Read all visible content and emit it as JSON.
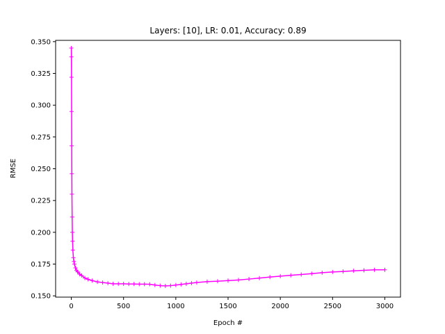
{
  "chart_data": {
    "type": "line",
    "title": "Layers: [10], LR: 0.01, Accuracy: 0.89",
    "xlabel": "Epoch #",
    "ylabel": "RMSE",
    "xlim": [
      -150,
      3150
    ],
    "ylim": [
      0.149,
      0.351
    ],
    "xticks": [
      0,
      500,
      1000,
      1500,
      2000,
      2500,
      3000
    ],
    "yticks": [
      0.15,
      0.175,
      0.2,
      0.225,
      0.25,
      0.275,
      0.3,
      0.325,
      0.35
    ],
    "xtick_labels": [
      "0",
      "500",
      "1000",
      "1500",
      "2000",
      "2500",
      "3000"
    ],
    "ytick_labels": [
      "0.150",
      "0.175",
      "0.200",
      "0.225",
      "0.250",
      "0.275",
      "0.300",
      "0.325",
      "0.350"
    ],
    "grid": false,
    "series": [
      {
        "color": "#ff00ff",
        "marker": "+",
        "x": [
          0,
          1,
          2,
          3,
          4,
          5,
          6,
          8,
          10,
          12,
          15,
          20,
          25,
          30,
          40,
          50,
          60,
          80,
          100,
          130,
          160,
          200,
          250,
          300,
          350,
          400,
          450,
          500,
          550,
          600,
          650,
          700,
          750,
          800,
          850,
          900,
          950,
          1000,
          1050,
          1100,
          1150,
          1200,
          1300,
          1400,
          1500,
          1600,
          1700,
          1800,
          1900,
          2000,
          2100,
          2200,
          2300,
          2400,
          2500,
          2600,
          2700,
          2800,
          2900,
          3000
        ],
        "y": [
          0.345,
          0.338,
          0.322,
          0.295,
          0.268,
          0.246,
          0.23,
          0.212,
          0.2,
          0.193,
          0.186,
          0.18,
          0.177,
          0.175,
          0.172,
          0.17,
          0.169,
          0.167,
          0.166,
          0.164,
          0.163,
          0.162,
          0.161,
          0.1605,
          0.16,
          0.1595,
          0.1595,
          0.1595,
          0.1593,
          0.1593,
          0.1592,
          0.1592,
          0.1591,
          0.1585,
          0.158,
          0.1578,
          0.158,
          0.1585,
          0.159,
          0.1595,
          0.16,
          0.1605,
          0.1612,
          0.1615,
          0.162,
          0.1625,
          0.1632,
          0.164,
          0.1648,
          0.1655,
          0.1662,
          0.1668,
          0.1675,
          0.1682,
          0.1688,
          0.1692,
          0.1697,
          0.1701,
          0.1705,
          0.1705
        ]
      }
    ]
  }
}
